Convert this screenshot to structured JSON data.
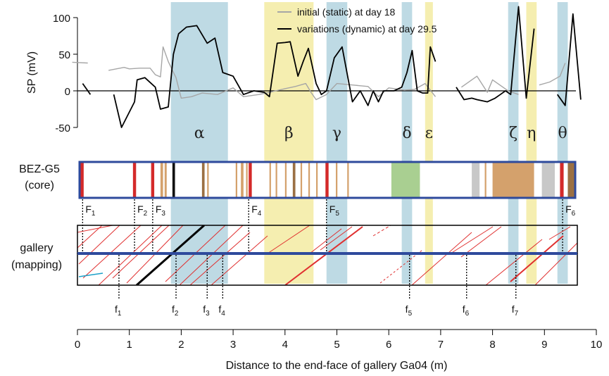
{
  "colors": {
    "band_blue": "#b3d4df",
    "band_yellow": "#f3eba2",
    "initial_line": "#a6a6a6",
    "dynamic_line": "#000000",
    "core_frame": "#2e4a9c",
    "fracture_red": "#d42a2a",
    "core_tan": "#d4a16c",
    "core_brown": "#9b7043",
    "core_green": "#a9cf91",
    "core_gray": "#c8c8c8"
  },
  "chart_data": {
    "type": "line",
    "ylabel": "SP (mV)",
    "xlabel": "Distance to the end-face of gallery Ga04 (m)",
    "xlim": [
      0,
      10
    ],
    "ylim": [
      -50,
      100
    ],
    "xticks": [
      0,
      1,
      2,
      3,
      4,
      5,
      6,
      7,
      8,
      9,
      10
    ],
    "yticks": [
      -50,
      0,
      50,
      100
    ],
    "legend_position": "top-center",
    "series": [
      {
        "name": "initial (static) at day 18",
        "color": "#a6a6a6",
        "segments": [
          [
            [
              -0.1,
              39
            ],
            [
              0.2,
              38
            ]
          ],
          [
            [
              0.6,
              28
            ],
            [
              0.9,
              32
            ],
            [
              1.0,
              30
            ],
            [
              1.2,
              31
            ],
            [
              1.4,
              31
            ],
            [
              1.5,
              22
            ],
            [
              1.6,
              19
            ],
            [
              1.65,
              60
            ],
            [
              1.75,
              40
            ],
            [
              1.9,
              18
            ],
            [
              2.0,
              -10
            ],
            [
              2.2,
              -8
            ],
            [
              2.4,
              -3
            ],
            [
              2.7,
              -5
            ],
            [
              3.0,
              4
            ],
            [
              3.2,
              -8
            ],
            [
              3.5,
              -5
            ],
            [
              3.7,
              -2
            ],
            [
              4.0,
              3
            ],
            [
              4.2,
              6
            ],
            [
              4.4,
              10
            ],
            [
              4.5,
              -2
            ],
            [
              4.6,
              -12
            ],
            [
              4.8,
              -5
            ],
            [
              5.0,
              10
            ],
            [
              5.3,
              8
            ],
            [
              5.6,
              6
            ],
            [
              5.8,
              -8
            ],
            [
              6.0,
              4
            ],
            [
              6.3,
              1
            ],
            [
              6.5,
              2
            ],
            [
              6.7,
              10
            ],
            [
              6.9,
              -8
            ]
          ],
          [
            [
              7.4,
              5
            ],
            [
              7.7,
              20
            ],
            [
              7.9,
              -2
            ],
            [
              8.0,
              15
            ],
            [
              8.3,
              0
            ],
            [
              8.5,
              -5
            ]
          ],
          [
            [
              8.9,
              8
            ],
            [
              9.1,
              12
            ],
            [
              9.3,
              20
            ],
            [
              9.4,
              38
            ]
          ]
        ]
      },
      {
        "name": "variations (dynamic) at day 29.5",
        "color": "#000000",
        "segments": [
          [
            [
              0.1,
              10
            ],
            [
              0.25,
              -5
            ]
          ],
          [
            [
              0.7,
              -5
            ],
            [
              0.85,
              -50
            ],
            [
              1.1,
              -15
            ],
            [
              1.15,
              15
            ],
            [
              1.3,
              18
            ],
            [
              1.5,
              5
            ],
            [
              1.6,
              -25
            ],
            [
              1.75,
              -22
            ],
            [
              1.85,
              50
            ],
            [
              1.95,
              78
            ],
            [
              2.1,
              87
            ],
            [
              2.3,
              89
            ],
            [
              2.5,
              65
            ],
            [
              2.65,
              72
            ],
            [
              2.8,
              25
            ],
            [
              3.0,
              20
            ],
            [
              3.2,
              -5
            ],
            [
              3.4,
              0
            ],
            [
              3.6,
              -2
            ],
            [
              3.7,
              -8
            ],
            [
              3.85,
              65
            ],
            [
              4.0,
              66
            ],
            [
              4.1,
              67
            ],
            [
              4.25,
              20
            ],
            [
              4.35,
              40
            ],
            [
              4.45,
              58
            ],
            [
              4.6,
              10
            ],
            [
              4.7,
              -5
            ],
            [
              4.8,
              0
            ],
            [
              4.95,
              45
            ],
            [
              5.1,
              60
            ],
            [
              5.3,
              -15
            ],
            [
              5.45,
              0
            ],
            [
              5.6,
              -20
            ],
            [
              5.7,
              0
            ],
            [
              5.8,
              -15
            ],
            [
              5.9,
              0
            ],
            [
              6.1,
              0
            ],
            [
              6.25,
              5
            ],
            [
              6.35,
              25
            ],
            [
              6.45,
              55
            ],
            [
              6.55,
              0
            ],
            [
              6.65,
              -3
            ],
            [
              6.75,
              -3
            ],
            [
              6.8,
              60
            ],
            [
              6.9,
              40
            ]
          ],
          [
            [
              7.3,
              5
            ],
            [
              7.45,
              -12
            ],
            [
              7.6,
              -10
            ],
            [
              7.7,
              -12
            ],
            [
              7.9,
              -15
            ],
            [
              8.05,
              -10
            ],
            [
              8.15,
              -5
            ],
            [
              8.25,
              0
            ],
            [
              8.35,
              -5
            ],
            [
              8.5,
              115
            ],
            [
              8.65,
              -10
            ],
            [
              8.8,
              85
            ]
          ],
          [
            [
              9.25,
              -5
            ],
            [
              9.4,
              -20
            ],
            [
              9.55,
              105
            ],
            [
              9.7,
              -12
            ]
          ]
        ]
      }
    ],
    "bands": [
      {
        "label": "α",
        "x0": 1.8,
        "x1": 2.9,
        "color": "blue"
      },
      {
        "label": "β",
        "x0": 3.6,
        "x1": 4.55,
        "color": "yellow"
      },
      {
        "label": "γ",
        "x0": 4.8,
        "x1": 5.2,
        "color": "blue"
      },
      {
        "label": "δ",
        "x0": 6.25,
        "x1": 6.45,
        "color": "blue"
      },
      {
        "label": "ε",
        "x0": 6.7,
        "x1": 6.85,
        "color": "yellow"
      },
      {
        "label": "ζ",
        "x0": 8.3,
        "x1": 8.5,
        "color": "blue"
      },
      {
        "label": "η",
        "x0": 8.65,
        "x1": 8.85,
        "color": "yellow"
      },
      {
        "label": "θ",
        "x0": 9.25,
        "x1": 9.45,
        "color": "blue"
      }
    ]
  },
  "core": {
    "label_line1": "BEZ-G5",
    "label_line2": "(core)",
    "fractures": [
      {
        "label": "F",
        "sub": "1",
        "x": 0.1
      },
      {
        "label": "F",
        "sub": "2",
        "x": 1.1
      },
      {
        "label": "F",
        "sub": "3",
        "x": 1.45
      },
      {
        "label": "F",
        "sub": "4",
        "x": 3.3
      },
      {
        "label": "F",
        "sub": "5",
        "x": 4.8
      },
      {
        "label": "F",
        "sub": "6",
        "x": 9.35
      }
    ],
    "blocks": [
      {
        "x0": 0.05,
        "x1": 0.12,
        "kind": "red"
      },
      {
        "x0": 1.07,
        "x1": 1.13,
        "kind": "red"
      },
      {
        "x0": 1.42,
        "x1": 1.48,
        "kind": "red"
      },
      {
        "x0": 1.6,
        "x1": 1.65,
        "kind": "tan"
      },
      {
        "x0": 1.68,
        "x1": 1.72,
        "kind": "tan"
      },
      {
        "x0": 1.83,
        "x1": 1.88,
        "kind": "black"
      },
      {
        "x0": 2.4,
        "x1": 2.45,
        "kind": "brown"
      },
      {
        "x0": 2.5,
        "x1": 2.53,
        "kind": "tan"
      },
      {
        "x0": 3.05,
        "x1": 3.08,
        "kind": "tan"
      },
      {
        "x0": 3.15,
        "x1": 3.2,
        "kind": "tan"
      },
      {
        "x0": 3.25,
        "x1": 3.28,
        "kind": "tan"
      },
      {
        "x0": 3.3,
        "x1": 3.36,
        "kind": "red"
      },
      {
        "x0": 3.7,
        "x1": 3.73,
        "kind": "tan"
      },
      {
        "x0": 3.82,
        "x1": 3.85,
        "kind": "tan"
      },
      {
        "x0": 4.0,
        "x1": 4.03,
        "kind": "tan"
      },
      {
        "x0": 4.15,
        "x1": 4.2,
        "kind": "brown"
      },
      {
        "x0": 4.3,
        "x1": 4.33,
        "kind": "tan"
      },
      {
        "x0": 4.45,
        "x1": 4.48,
        "kind": "tan"
      },
      {
        "x0": 4.6,
        "x1": 4.63,
        "kind": "tan"
      },
      {
        "x0": 4.78,
        "x1": 4.84,
        "kind": "red"
      },
      {
        "x0": 4.98,
        "x1": 5.01,
        "kind": "tan"
      },
      {
        "x0": 5.2,
        "x1": 5.23,
        "kind": "tan"
      },
      {
        "x0": 6.05,
        "x1": 6.6,
        "kind": "green"
      },
      {
        "x0": 7.6,
        "x1": 7.75,
        "kind": "gray"
      },
      {
        "x0": 7.85,
        "x1": 7.88,
        "kind": "tan"
      },
      {
        "x0": 8.0,
        "x1": 8.8,
        "kind": "tan"
      },
      {
        "x0": 8.95,
        "x1": 9.2,
        "kind": "gray"
      },
      {
        "x0": 9.3,
        "x1": 9.37,
        "kind": "red"
      },
      {
        "x0": 9.45,
        "x1": 9.6,
        "kind": "brown"
      }
    ]
  },
  "gallery": {
    "label_line1": "gallery",
    "label_line2": "(mapping)",
    "fractures": [
      {
        "label": "f",
        "sub": "1",
        "x": 0.8
      },
      {
        "label": "f",
        "sub": "2",
        "x": 1.9
      },
      {
        "label": "f",
        "sub": "3",
        "x": 2.5
      },
      {
        "label": "f",
        "sub": "4",
        "x": 2.8
      },
      {
        "label": "f",
        "sub": "5",
        "x": 6.4
      },
      {
        "label": "f",
        "sub": "6",
        "x": 7.5
      },
      {
        "label": "f",
        "sub": "7",
        "x": 8.45
      }
    ]
  }
}
